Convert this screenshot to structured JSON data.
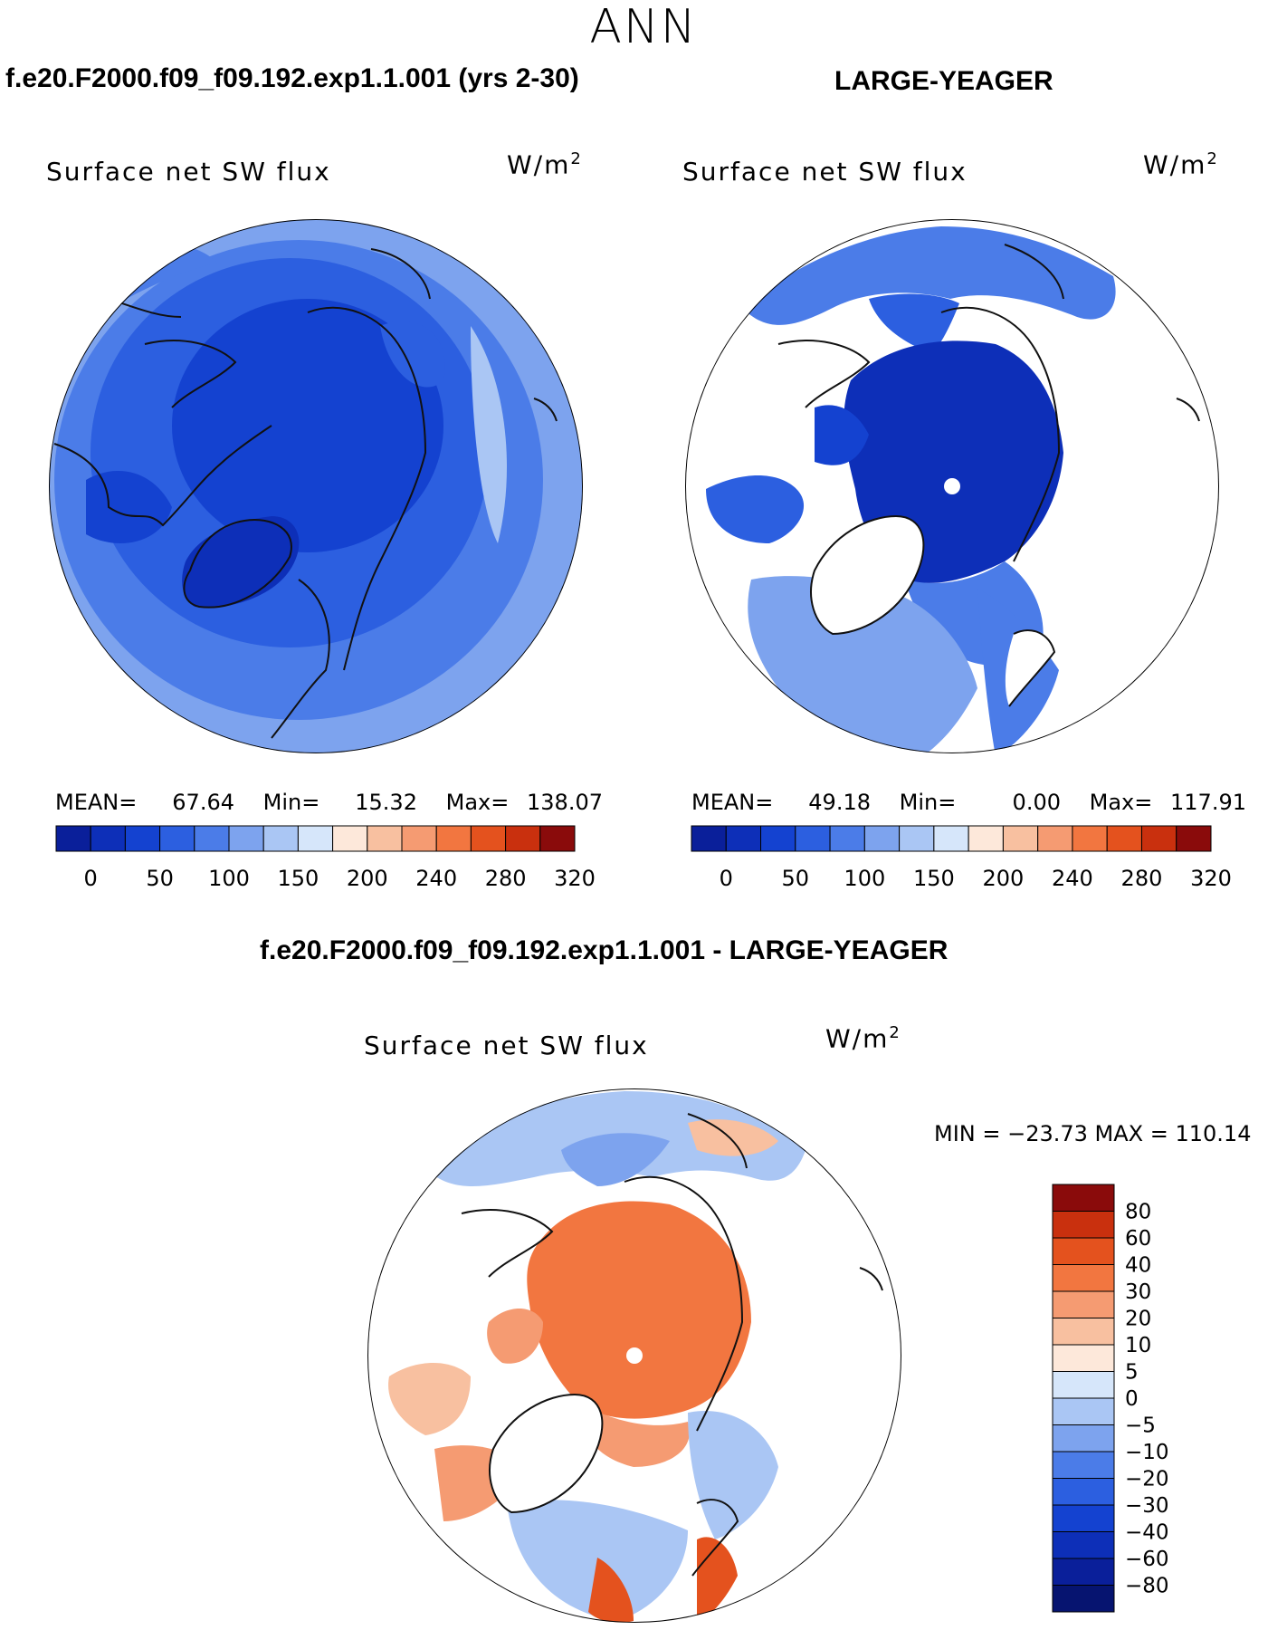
{
  "season": "ANN",
  "panels": {
    "top_left": {
      "title": "f.e20.F2000.f09_f09.192.exp1.1.001 (yrs 2-30)",
      "variable": "Surface net SW flux",
      "units_base": "W/m",
      "units_exp": "2",
      "mean_label": "MEAN=",
      "mean_value": "67.64",
      "min_label": "Min=",
      "min_value": "15.32",
      "max_label": "Max=",
      "max_value": "138.07"
    },
    "top_right": {
      "title": "LARGE-YEAGER",
      "variable": "Surface net SW flux",
      "units_base": "W/m",
      "units_exp": "2",
      "mean_label": "MEAN=",
      "mean_value": "49.18",
      "min_label": "Min=",
      "min_value": "0.00",
      "max_label": "Max=",
      "max_value": "117.91"
    },
    "bottom": {
      "title": "f.e20.F2000.f09_f09.192.exp1.1.001 - LARGE-YEAGER",
      "variable": "Surface net SW flux",
      "units_base": "W/m",
      "units_exp": "2",
      "minmax_text": "MIN = −23.73 MAX = 110.14"
    }
  },
  "chart_data": [
    {
      "type": "heatmap",
      "projection": "north polar stereographic",
      "title": "Surface net SW flux",
      "units": "W/m2",
      "mean": 67.64,
      "min": 15.32,
      "max": 138.07,
      "colorbar_ticks": [
        "0",
        "50",
        "100",
        "150",
        "200",
        "240",
        "280",
        "320"
      ],
      "colorbar_colors": [
        "#0a1f9a",
        "#0d2fb8",
        "#1442d0",
        "#2c5fe0",
        "#4b7ce8",
        "#7da3ee",
        "#aac6f4",
        "#d6e6fa",
        "#fde8da",
        "#f8c0a0",
        "#f59b72",
        "#f27640",
        "#e4521e",
        "#c9300e",
        "#8a0b0b"
      ]
    },
    {
      "type": "heatmap",
      "projection": "north polar stereographic",
      "title": "Surface net SW flux",
      "units": "W/m2",
      "mean": 49.18,
      "min": 0.0,
      "max": 117.91,
      "colorbar_ticks": [
        "0",
        "50",
        "100",
        "150",
        "200",
        "240",
        "280",
        "320"
      ],
      "colorbar_colors": [
        "#0a1f9a",
        "#0d2fb8",
        "#1442d0",
        "#2c5fe0",
        "#4b7ce8",
        "#7da3ee",
        "#aac6f4",
        "#d6e6fa",
        "#fde8da",
        "#f8c0a0",
        "#f59b72",
        "#f27640",
        "#e4521e",
        "#c9300e",
        "#8a0b0b"
      ]
    },
    {
      "type": "heatmap",
      "projection": "north polar stereographic",
      "title": "Surface net SW flux",
      "units": "W/m2",
      "min": -23.73,
      "max": 110.14,
      "colorbar_ticks": [
        "80",
        "60",
        "40",
        "30",
        "20",
        "10",
        "5",
        "0",
        "−5",
        "−10",
        "−20",
        "−30",
        "−40",
        "−60",
        "−80"
      ],
      "colorbar_colors": [
        "#8a0b0b",
        "#c9300e",
        "#e4521e",
        "#f27640",
        "#f59b72",
        "#f8c0a0",
        "#fde8da",
        "#d6e6fa",
        "#aac6f4",
        "#7da3ee",
        "#4b7ce8",
        "#2c5fe0",
        "#1442d0",
        "#0d2fb8",
        "#0a1f9a",
        "#061470"
      ]
    }
  ]
}
